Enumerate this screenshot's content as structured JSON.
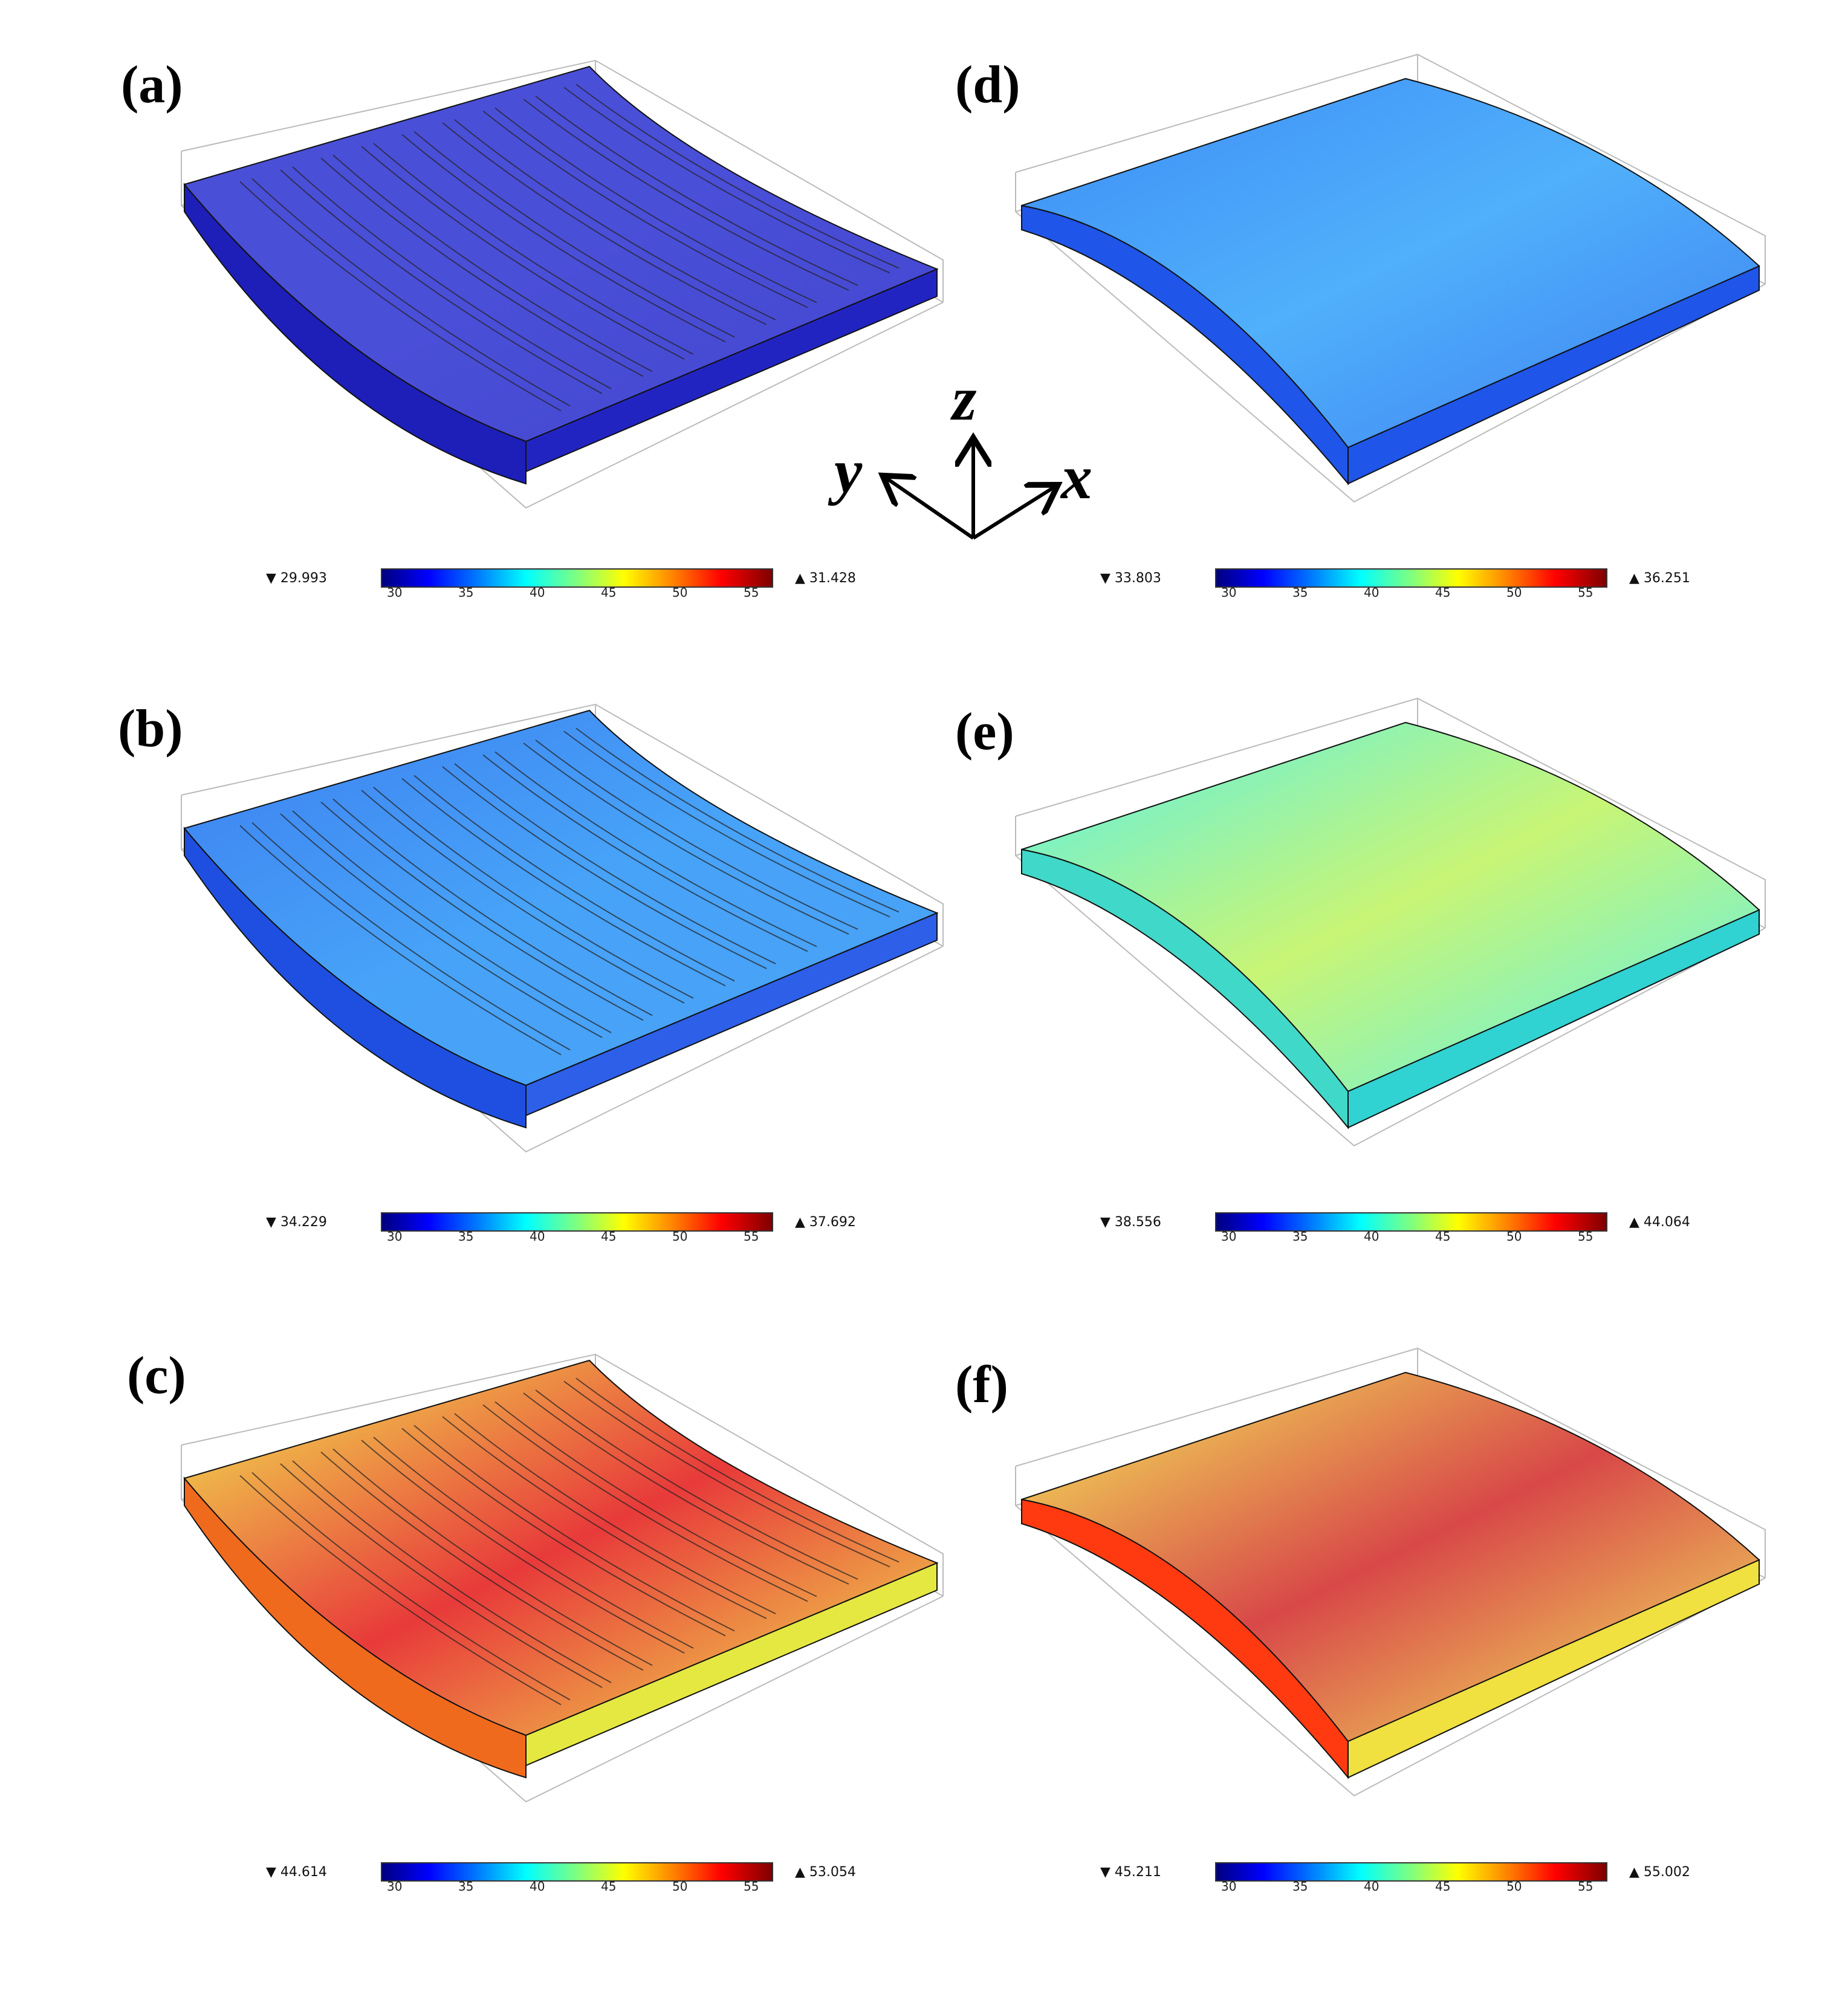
{
  "panels": [
    {
      "label": "(a)",
      "min": "29.993",
      "max": "31.428",
      "grooves": true,
      "colors": {
        "top": "#4a4fd8",
        "topEnd": "#4346cf",
        "side": "#1d1fb8",
        "front": "#2224c2",
        "topMid": "#4a4fd8"
      }
    },
    {
      "label": "(b)",
      "min": "34.229",
      "max": "37.692",
      "grooves": true,
      "colors": {
        "top": "#3d7ff0",
        "topEnd": "#4aa0f5",
        "side": "#1f4fe0",
        "front": "#2d5fe8",
        "topMid": "#47a3f8"
      }
    },
    {
      "label": "(c)",
      "min": "44.614",
      "max": "53.054",
      "grooves": true,
      "colors": {
        "top": "#f2ee50",
        "topEnd": "#f2ee50",
        "side": "#f06a1e",
        "front": "#e5e840",
        "topMid": "#e83a3a"
      }
    },
    {
      "label": "(d)",
      "min": "33.803",
      "max": "36.251",
      "grooves": false,
      "colors": {
        "top": "#3d8cf5",
        "topEnd": "#3d7ff0",
        "side": "#1f55e8",
        "front": "#1f55e8",
        "topMid": "#50b0fb"
      }
    },
    {
      "label": "(e)",
      "min": "38.556",
      "max": "44.064",
      "grooves": false,
      "colors": {
        "top": "#5af0e8",
        "topEnd": "#5af0f0",
        "side": "#40d8c8",
        "front": "#30d2d2",
        "topMid": "#c8f575"
      }
    },
    {
      "label": "(f)",
      "min": "45.211",
      "max": "55.002",
      "grooves": false,
      "colors": {
        "top": "#f5f05a",
        "topEnd": "#f5f060",
        "side": "#ff3a10",
        "front": "#f0e040",
        "topMid": "#d84848"
      }
    }
  ],
  "colorbar_ticks": [
    "30",
    "35",
    "40",
    "45",
    "50",
    "55"
  ],
  "axes_labels": {
    "z": "z",
    "y": "y",
    "x": "x"
  }
}
